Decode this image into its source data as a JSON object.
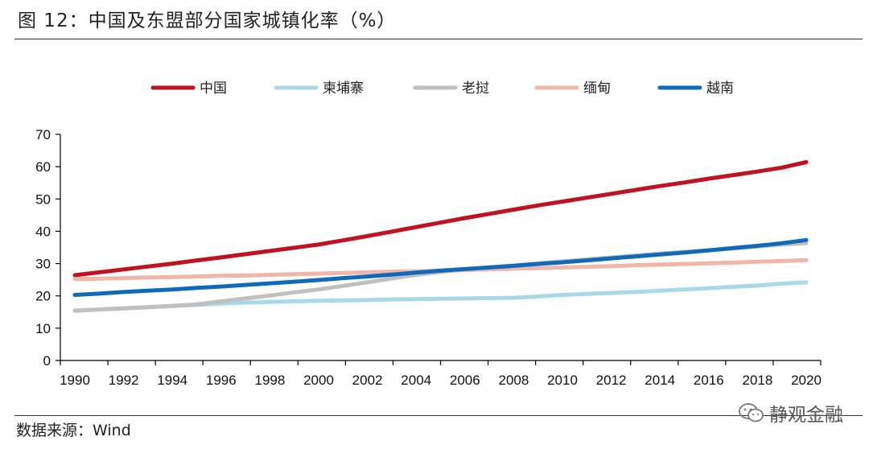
{
  "title": "图 12：中国及东盟部分国家城镇化率（%）",
  "source": "数据来源：Wind",
  "watermark": {
    "text": "静观金融",
    "icon": "wechat-icon"
  },
  "chart_data": {
    "type": "line",
    "title": "",
    "xlabel": "",
    "ylabel": "",
    "x": [
      1990,
      1991,
      1992,
      1993,
      1994,
      1995,
      1996,
      1997,
      1998,
      1999,
      2000,
      2001,
      2002,
      2003,
      2004,
      2005,
      2006,
      2007,
      2008,
      2009,
      2010,
      2011,
      2012,
      2013,
      2014,
      2015,
      2016,
      2017,
      2018,
      2019,
      2020
    ],
    "xticks": [
      "1990",
      "1992",
      "1994",
      "1996",
      "1998",
      "2000",
      "2002",
      "2004",
      "2006",
      "2008",
      "2010",
      "2012",
      "2014",
      "2016",
      "2018",
      "2020"
    ],
    "ylim": [
      0,
      70
    ],
    "yticks": [
      0,
      10,
      20,
      30,
      40,
      50,
      60,
      70
    ],
    "legend_position": "top",
    "grid": false,
    "series": [
      {
        "name": "中国",
        "color": "#C0121F",
        "values": [
          26.4,
          27.3,
          28.2,
          29.1,
          30.0,
          31.0,
          31.9,
          32.9,
          33.9,
          34.9,
          35.9,
          37.2,
          38.5,
          39.9,
          41.3,
          42.7,
          44.1,
          45.4,
          46.7,
          48.0,
          49.2,
          50.4,
          51.6,
          52.8,
          54.0,
          55.1,
          56.3,
          57.4,
          58.5,
          59.7,
          61.4
        ]
      },
      {
        "name": "柬埔寨",
        "color": "#A9D9E8",
        "values": [
          15.5,
          15.8,
          16.2,
          16.5,
          16.9,
          17.2,
          17.6,
          17.9,
          18.1,
          18.3,
          18.5,
          18.6,
          18.7,
          18.9,
          19.0,
          19.1,
          19.2,
          19.3,
          19.4,
          19.8,
          20.3,
          20.6,
          20.9,
          21.2,
          21.6,
          22.0,
          22.4,
          22.8,
          23.2,
          23.8,
          24.2
        ]
      },
      {
        "name": "老挝",
        "color": "#C0C0C0",
        "values": [
          15.4,
          15.8,
          16.1,
          16.5,
          16.9,
          17.4,
          18.3,
          19.2,
          20.1,
          21.1,
          22.0,
          23.1,
          24.2,
          25.4,
          26.5,
          27.4,
          28.2,
          28.8,
          29.4,
          30.1,
          30.7,
          31.3,
          31.9,
          32.5,
          33.1,
          33.6,
          34.1,
          34.7,
          35.3,
          35.9,
          36.3
        ]
      },
      {
        "name": "缅甸",
        "color": "#EFB6A9",
        "values": [
          25.2,
          25.3,
          25.5,
          25.7,
          25.8,
          26.0,
          26.2,
          26.3,
          26.5,
          26.7,
          26.9,
          27.1,
          27.3,
          27.5,
          27.6,
          27.8,
          28.0,
          28.2,
          28.4,
          28.6,
          28.8,
          29.0,
          29.2,
          29.5,
          29.7,
          29.9,
          30.1,
          30.3,
          30.6,
          30.8,
          31.1
        ]
      },
      {
        "name": "越南",
        "color": "#0F6BBA",
        "values": [
          20.3,
          20.7,
          21.2,
          21.6,
          22.0,
          22.5,
          22.9,
          23.4,
          23.9,
          24.4,
          24.9,
          25.5,
          26.0,
          26.6,
          27.2,
          27.8,
          28.3,
          28.8,
          29.3,
          29.9,
          30.4,
          31.0,
          31.6,
          32.2,
          32.8,
          33.4,
          34.1,
          34.8,
          35.5,
          36.3,
          37.3
        ]
      }
    ]
  }
}
